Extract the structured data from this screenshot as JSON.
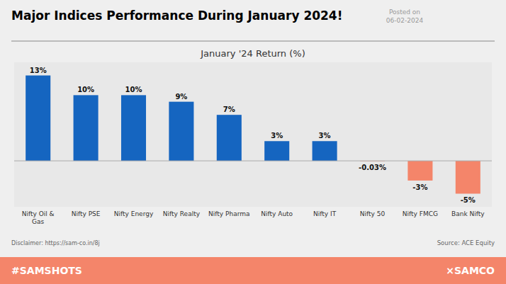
{
  "chart_data": {
    "type": "bar",
    "title": "Major Indices Performance During January 2024!",
    "subtitle": "January '24 Return (%)",
    "annotations": [
      "Posted on\n06-02-2024",
      "Disclaimer: https://sam-co.in/8j",
      "Source: ACE Equity",
      "#SAMSHOTS",
      "×SAMCO"
    ],
    "categories": [
      "Nifty Oil &\nGas",
      "Nifty PSE",
      "Nifty Energy",
      "Nifty Realty",
      "Nifty Pharma",
      "Nifty Auto",
      "Nifty IT",
      "Nifty 50",
      "Nifty FMCG",
      "Bank Nifty"
    ],
    "values": [
      13,
      10,
      10,
      9,
      7,
      3,
      3,
      -0.03,
      -3,
      -5
    ],
    "value_labels": [
      "13%",
      "10%",
      "10%",
      "9%",
      "7%",
      "3%",
      "3%",
      "-0.03%",
      "-3%",
      "-5%"
    ],
    "colors": [
      "#1565C0",
      "#1565C0",
      "#1565C0",
      "#1565C0",
      "#1565C0",
      "#1565C0",
      "#1565C0",
      "#F4856A",
      "#F4856A",
      "#F4856A"
    ],
    "ylim": [
      -7,
      15
    ],
    "data_labels": true,
    "tick_labels": "x"
  }
}
